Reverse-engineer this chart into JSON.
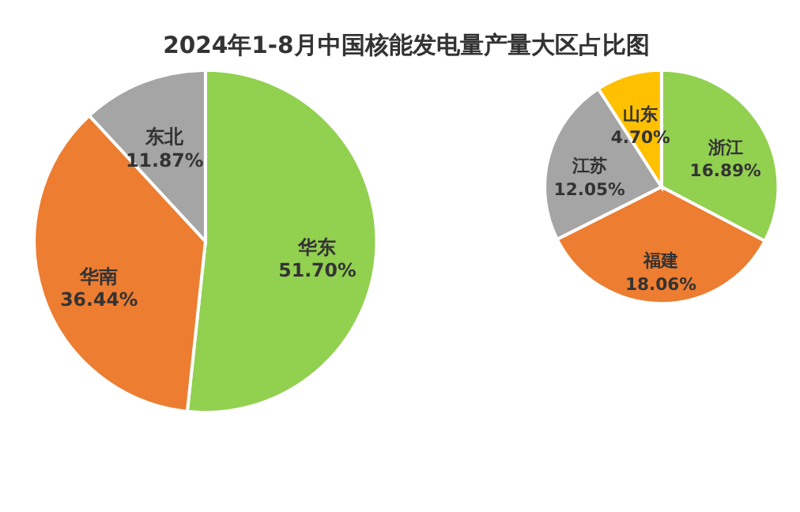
{
  "chart_data": [
    {
      "type": "pie",
      "title": "2024年1-8月中国核能发电量产量大区占比图",
      "categories": [
        "华东",
        "华南",
        "东北"
      ],
      "values": [
        51.7,
        36.44,
        11.87
      ],
      "value_labels": [
        "51.70%",
        "36.44%",
        "11.87%"
      ],
      "colors": [
        "#92d050",
        "#ed7d31",
        "#a5a5a5"
      ]
    },
    {
      "type": "pie",
      "categories": [
        "浙江",
        "福建",
        "江苏",
        "山东"
      ],
      "values": [
        16.89,
        18.06,
        12.05,
        4.7
      ],
      "value_labels": [
        "16.89%",
        "18.06%",
        "12.05%",
        "4.70%"
      ],
      "colors": [
        "#92d050",
        "#ed7d31",
        "#a5a5a5",
        "#ffc000"
      ]
    }
  ]
}
